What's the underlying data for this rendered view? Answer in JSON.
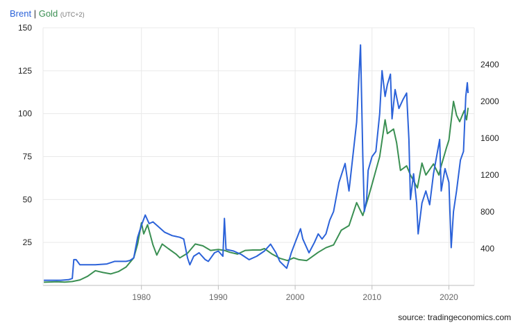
{
  "legend": {
    "brent_label": "Brent",
    "separator": "|",
    "gold_label": "Gold",
    "timezone": "(UTC+2)"
  },
  "source": "source: tradingeconomics.com",
  "colors": {
    "brent": "#2b62d9",
    "gold": "#3a8f52",
    "grid": "#e9e9e9",
    "axis": "#bdbdbd"
  },
  "chart_data": {
    "type": "line",
    "title": "",
    "grid": true,
    "legend_position": "top-left",
    "x_ticks": [
      1980,
      1990,
      2000,
      2010,
      2020
    ],
    "xlim": [
      1967.2,
      2023.3
    ],
    "y_left": {
      "ylim": [
        0,
        150
      ],
      "ticks": [
        25,
        50,
        75,
        100,
        125,
        150
      ]
    },
    "y_right": {
      "ylim": [
        0,
        2800
      ],
      "ticks": [
        400,
        800,
        1200,
        1600,
        2000,
        2400
      ]
    },
    "series": [
      {
        "name": "Brent",
        "axis": "left",
        "points": [
          [
            1967.3,
            3
          ],
          [
            1969.5,
            3
          ],
          [
            1970.5,
            3.3
          ],
          [
            1971.0,
            4
          ],
          [
            1971.2,
            15
          ],
          [
            1971.5,
            15
          ],
          [
            1972.0,
            12
          ],
          [
            1974.0,
            12
          ],
          [
            1975.5,
            12.5
          ],
          [
            1976.5,
            14
          ],
          [
            1978.0,
            14
          ],
          [
            1978.5,
            14.5
          ],
          [
            1979.0,
            16
          ],
          [
            1979.5,
            28
          ],
          [
            1980.0,
            35
          ],
          [
            1980.5,
            41
          ],
          [
            1981.0,
            36
          ],
          [
            1981.5,
            37
          ],
          [
            1982.0,
            35
          ],
          [
            1983.0,
            31
          ],
          [
            1984.0,
            29
          ],
          [
            1985.0,
            28
          ],
          [
            1985.5,
            27
          ],
          [
            1986.0,
            16
          ],
          [
            1986.3,
            12
          ],
          [
            1986.8,
            17
          ],
          [
            1987.5,
            19
          ],
          [
            1988.3,
            15
          ],
          [
            1988.7,
            14
          ],
          [
            1989.5,
            19
          ],
          [
            1990.0,
            20
          ],
          [
            1990.6,
            17
          ],
          [
            1990.8,
            39
          ],
          [
            1991.0,
            21
          ],
          [
            1992.0,
            20
          ],
          [
            1993.0,
            18
          ],
          [
            1994.0,
            15
          ],
          [
            1995.0,
            17
          ],
          [
            1996.0,
            20
          ],
          [
            1996.8,
            24
          ],
          [
            1997.5,
            19
          ],
          [
            1998.0,
            14
          ],
          [
            1998.9,
            10
          ],
          [
            1999.5,
            19
          ],
          [
            2000.0,
            25
          ],
          [
            2000.7,
            33
          ],
          [
            2001.0,
            27
          ],
          [
            2001.8,
            19
          ],
          [
            2002.5,
            25
          ],
          [
            2003.0,
            30
          ],
          [
            2003.5,
            27
          ],
          [
            2004.0,
            30
          ],
          [
            2004.5,
            38
          ],
          [
            2005.0,
            43
          ],
          [
            2005.7,
            60
          ],
          [
            2006.5,
            71
          ],
          [
            2007.0,
            55
          ],
          [
            2007.5,
            75
          ],
          [
            2008.0,
            95
          ],
          [
            2008.5,
            140
          ],
          [
            2008.8,
            75
          ],
          [
            2009.0,
            43
          ],
          [
            2009.3,
            50
          ],
          [
            2009.5,
            67
          ],
          [
            2010.0,
            75
          ],
          [
            2010.5,
            78
          ],
          [
            2011.0,
            100
          ],
          [
            2011.3,
            125
          ],
          [
            2011.7,
            110
          ],
          [
            2012.0,
            117
          ],
          [
            2012.4,
            123
          ],
          [
            2012.6,
            97
          ],
          [
            2013.0,
            114
          ],
          [
            2013.5,
            103
          ],
          [
            2014.0,
            108
          ],
          [
            2014.5,
            112
          ],
          [
            2014.8,
            85
          ],
          [
            2015.0,
            50
          ],
          [
            2015.4,
            65
          ],
          [
            2015.8,
            48
          ],
          [
            2016.0,
            30
          ],
          [
            2016.5,
            48
          ],
          [
            2017.0,
            55
          ],
          [
            2017.5,
            47
          ],
          [
            2018.0,
            65
          ],
          [
            2018.8,
            85
          ],
          [
            2019.0,
            55
          ],
          [
            2019.5,
            68
          ],
          [
            2020.0,
            60
          ],
          [
            2020.3,
            22
          ],
          [
            2020.6,
            43
          ],
          [
            2021.0,
            55
          ],
          [
            2021.5,
            73
          ],
          [
            2021.9,
            78
          ],
          [
            2022.2,
            110
          ],
          [
            2022.4,
            118
          ],
          [
            2022.5,
            112
          ]
        ]
      },
      {
        "name": "Gold",
        "axis": "right",
        "points": [
          [
            1967.3,
            35
          ],
          [
            1969.0,
            40
          ],
          [
            1970.0,
            36
          ],
          [
            1971.0,
            42
          ],
          [
            1972.0,
            60
          ],
          [
            1973.0,
            100
          ],
          [
            1974.0,
            160
          ],
          [
            1975.0,
            140
          ],
          [
            1976.0,
            125
          ],
          [
            1977.0,
            150
          ],
          [
            1978.0,
            200
          ],
          [
            1979.0,
            300
          ],
          [
            1979.5,
            450
          ],
          [
            1980.0,
            680
          ],
          [
            1980.3,
            560
          ],
          [
            1980.8,
            660
          ],
          [
            1981.5,
            440
          ],
          [
            1982.0,
            330
          ],
          [
            1982.7,
            450
          ],
          [
            1983.5,
            400
          ],
          [
            1984.5,
            340
          ],
          [
            1985.0,
            300
          ],
          [
            1986.0,
            350
          ],
          [
            1987.0,
            450
          ],
          [
            1988.0,
            430
          ],
          [
            1989.0,
            380
          ],
          [
            1990.0,
            390
          ],
          [
            1990.8,
            380
          ],
          [
            1991.5,
            360
          ],
          [
            1992.5,
            340
          ],
          [
            1993.5,
            380
          ],
          [
            1994.5,
            385
          ],
          [
            1995.5,
            385
          ],
          [
            1996.0,
            400
          ],
          [
            1997.0,
            340
          ],
          [
            1998.0,
            295
          ],
          [
            1999.0,
            270
          ],
          [
            1999.8,
            300
          ],
          [
            2000.5,
            280
          ],
          [
            2001.5,
            270
          ],
          [
            2002.0,
            300
          ],
          [
            2003.0,
            360
          ],
          [
            2004.0,
            410
          ],
          [
            2005.0,
            440
          ],
          [
            2006.0,
            600
          ],
          [
            2007.0,
            650
          ],
          [
            2008.0,
            900
          ],
          [
            2008.8,
            760
          ],
          [
            2009.5,
            950
          ],
          [
            2010.0,
            1100
          ],
          [
            2010.5,
            1250
          ],
          [
            2011.0,
            1400
          ],
          [
            2011.7,
            1800
          ],
          [
            2012.0,
            1650
          ],
          [
            2012.8,
            1700
          ],
          [
            2013.2,
            1550
          ],
          [
            2013.7,
            1250
          ],
          [
            2014.5,
            1300
          ],
          [
            2015.0,
            1200
          ],
          [
            2015.9,
            1060
          ],
          [
            2016.5,
            1330
          ],
          [
            2017.0,
            1200
          ],
          [
            2018.0,
            1320
          ],
          [
            2018.7,
            1200
          ],
          [
            2019.0,
            1300
          ],
          [
            2019.7,
            1500
          ],
          [
            2020.0,
            1580
          ],
          [
            2020.6,
            2000
          ],
          [
            2021.0,
            1850
          ],
          [
            2021.4,
            1780
          ],
          [
            2022.0,
            1900
          ],
          [
            2022.3,
            1800
          ],
          [
            2022.5,
            1930
          ]
        ]
      }
    ]
  }
}
